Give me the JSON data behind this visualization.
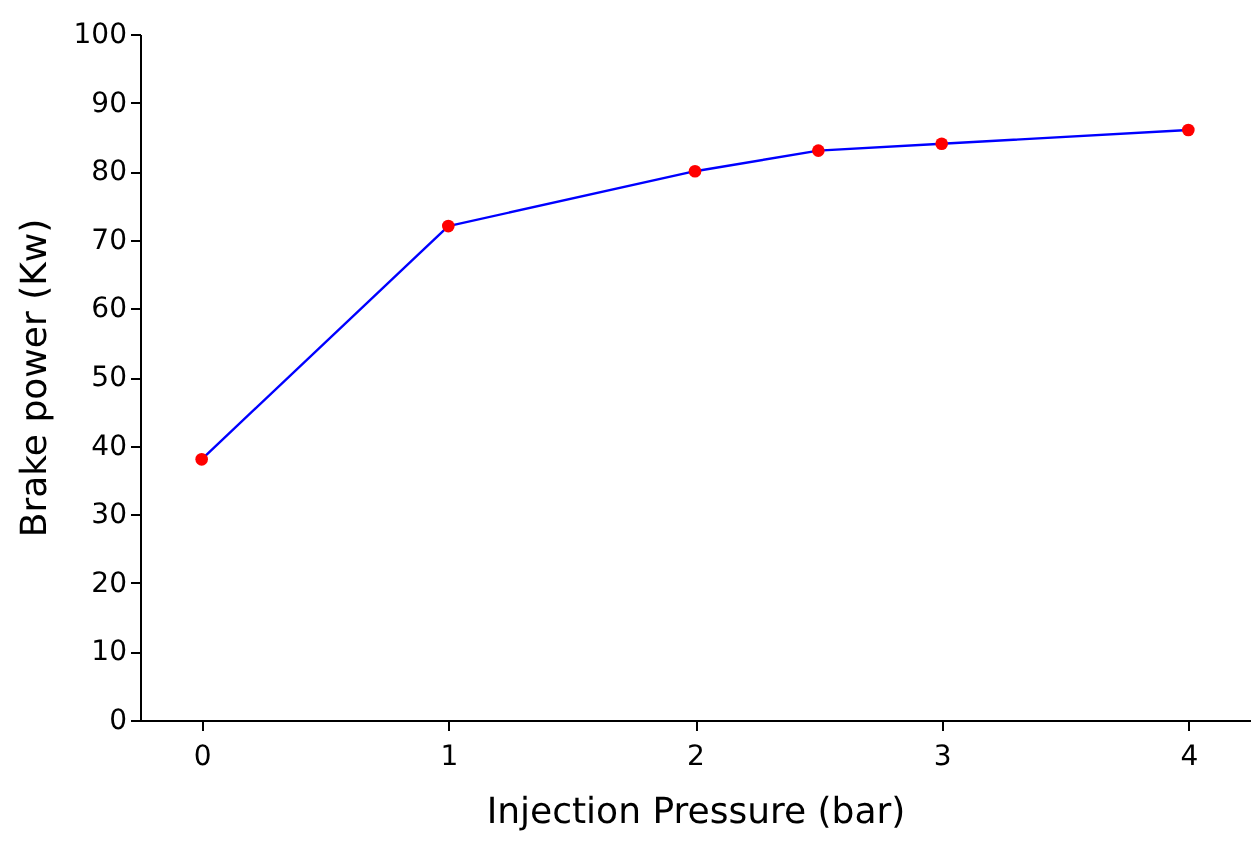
{
  "chart_data": {
    "type": "line",
    "xlabel": "Injection Pressure (bar)",
    "ylabel": "Brake power (Kw)",
    "x": [
      0,
      1,
      2,
      2.5,
      3,
      4
    ],
    "series": [
      {
        "color": "#0000ff",
        "colors": [
          "#ff0000",
          "#ff0000",
          "#ff0000",
          "#ff0000",
          "#ff0000",
          "#ff0000"
        ],
        "values": [
          38,
          72,
          80,
          83,
          84,
          86
        ]
      }
    ],
    "xlim": [
      -0.25,
      4.25
    ],
    "xticks": [
      0,
      1,
      2,
      3,
      4
    ],
    "ylim": [
      0,
      100
    ],
    "yticks": [
      0,
      10,
      20,
      30,
      40,
      50,
      60,
      70,
      80,
      90,
      100
    ],
    "grid": false,
    "marker": "circle",
    "line_style": "solid"
  }
}
